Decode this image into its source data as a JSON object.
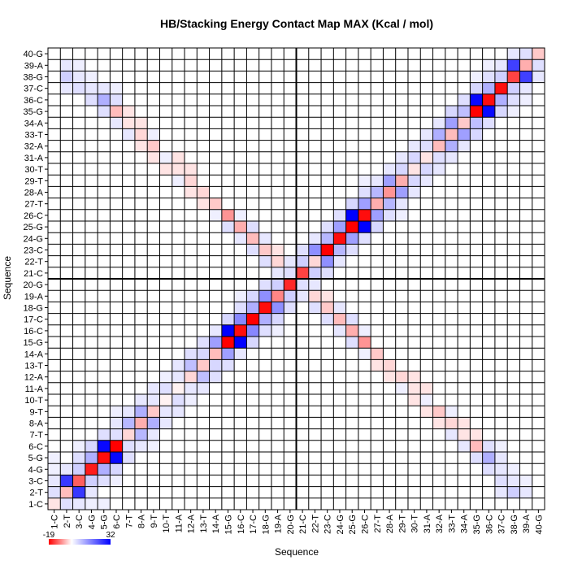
{
  "chart_data": {
    "type": "heatmap",
    "title": "HB/Stacking Energy Contact Map MAX (Kcal / mol)",
    "xlabel": "Sequence",
    "ylabel": "Sequence",
    "labels": [
      "1-C",
      "2-T",
      "3-C",
      "4-G",
      "5-G",
      "6-C",
      "7-T",
      "8-A",
      "9-T",
      "10-T",
      "11-A",
      "12-A",
      "13-T",
      "14-A",
      "15-G",
      "16-C",
      "17-C",
      "18-G",
      "19-A",
      "20-G",
      "21-C",
      "22-T",
      "23-C",
      "24-G",
      "25-G",
      "26-C",
      "27-T",
      "28-A",
      "29-T",
      "30-T",
      "31-A",
      "32-A",
      "33-T",
      "34-A",
      "35-G",
      "36-C",
      "37-C",
      "38-G",
      "39-A",
      "40-G"
    ],
    "x_tick_labels": [
      "1-C",
      "2-T",
      "3-C",
      "4-G",
      "5-G",
      "6-C",
      "7-T",
      "8-A",
      "9-T",
      "10-T",
      "11-A",
      "12-A",
      "13-T",
      "14-A",
      "15-G",
      "16-C",
      "17-C",
      "18-G",
      "19-A",
      "20-G",
      "21-C",
      "22-T",
      "23-C",
      "24-G",
      "25-G",
      "26-C",
      "27-T",
      "28-A",
      "29-T",
      "30-T",
      "31-A",
      "32-A",
      "33-T",
      "34-A",
      "35-G",
      "36-C",
      "37-C",
      "38-G",
      "39-A",
      "40-G"
    ],
    "y_tick_labels": [
      "1-C",
      "2-T",
      "3-C",
      "4-G",
      "5-G",
      "6-C",
      "7-T",
      "8-A",
      "9-T",
      "10-T",
      "11-A",
      "12-A",
      "13-T",
      "14-A",
      "15-G",
      "16-C",
      "17-C",
      "18-G",
      "19-A",
      "20-G",
      "21-C",
      "22-T",
      "23-C",
      "24-G",
      "25-G",
      "26-C",
      "27-T",
      "28-A",
      "29-T",
      "30-T",
      "31-A",
      "32-A",
      "33-T",
      "34-A",
      "35-G",
      "36-C",
      "37-C",
      "38-G",
      "39-A",
      "40-G"
    ],
    "divider_after": 20,
    "colorbar": {
      "min": -19,
      "max": 32,
      "min_label": "-19",
      "max_label": "32",
      "low_color": "#ff0000",
      "mid_color": "#ffffff",
      "high_color": "#0000ff"
    },
    "cells": [
      [
        1,
        1,
        -2
      ],
      [
        1,
        2,
        4
      ],
      [
        2,
        2,
        -5
      ],
      [
        2,
        3,
        25
      ],
      [
        3,
        3,
        -12
      ],
      [
        3,
        4,
        6
      ],
      [
        4,
        4,
        -17
      ],
      [
        4,
        5,
        10
      ],
      [
        5,
        5,
        -18
      ],
      [
        5,
        6,
        31
      ],
      [
        6,
        6,
        -19
      ],
      [
        6,
        7,
        4
      ],
      [
        7,
        7,
        -3
      ],
      [
        7,
        8,
        9
      ],
      [
        8,
        8,
        -6
      ],
      [
        8,
        9,
        10
      ],
      [
        9,
        9,
        -4
      ],
      [
        9,
        10,
        3
      ],
      [
        10,
        10,
        -1
      ],
      [
        10,
        11,
        4
      ],
      [
        11,
        11,
        -1
      ],
      [
        11,
        12,
        3
      ],
      [
        12,
        12,
        -3
      ],
      [
        12,
        13,
        8
      ],
      [
        13,
        13,
        -4
      ],
      [
        13,
        14,
        5
      ],
      [
        14,
        14,
        -5
      ],
      [
        14,
        15,
        12
      ],
      [
        15,
        15,
        -19
      ],
      [
        15,
        16,
        32
      ],
      [
        16,
        16,
        -18
      ],
      [
        16,
        17,
        15
      ],
      [
        17,
        17,
        -19
      ],
      [
        17,
        18,
        10
      ],
      [
        18,
        18,
        -18
      ],
      [
        18,
        19,
        14
      ],
      [
        19,
        19,
        -9
      ],
      [
        19,
        20,
        6
      ],
      [
        20,
        20,
        -16
      ],
      [
        20,
        21,
        4
      ],
      [
        21,
        21,
        -14
      ],
      [
        21,
        22,
        6
      ],
      [
        22,
        22,
        -3
      ],
      [
        22,
        23,
        14
      ],
      [
        23,
        23,
        -19
      ],
      [
        23,
        24,
        9
      ],
      [
        24,
        24,
        -18
      ],
      [
        24,
        25,
        12
      ],
      [
        25,
        25,
        -19
      ],
      [
        25,
        26,
        32
      ],
      [
        26,
        26,
        -18
      ],
      [
        26,
        27,
        12
      ],
      [
        27,
        27,
        -6
      ],
      [
        27,
        28,
        9
      ],
      [
        28,
        28,
        -8
      ],
      [
        28,
        29,
        12
      ],
      [
        29,
        29,
        -6
      ],
      [
        29,
        30,
        5
      ],
      [
        30,
        30,
        -2
      ],
      [
        30,
        31,
        5
      ],
      [
        31,
        31,
        -2
      ],
      [
        31,
        32,
        4
      ],
      [
        32,
        32,
        -5
      ],
      [
        32,
        33,
        10
      ],
      [
        33,
        33,
        -5
      ],
      [
        33,
        34,
        12
      ],
      [
        34,
        34,
        -4
      ],
      [
        34,
        35,
        8
      ],
      [
        35,
        35,
        -19
      ],
      [
        35,
        36,
        31
      ],
      [
        36,
        36,
        -18
      ],
      [
        36,
        37,
        10
      ],
      [
        37,
        37,
        -18
      ],
      [
        37,
        38,
        6
      ],
      [
        38,
        38,
        -14
      ],
      [
        38,
        39,
        24
      ],
      [
        39,
        39,
        -6
      ],
      [
        39,
        40,
        4
      ],
      [
        40,
        40,
        -4
      ],
      [
        2,
        38,
        6
      ],
      [
        3,
        38,
        3
      ],
      [
        2,
        37,
        3
      ],
      [
        3,
        37,
        4
      ],
      [
        3,
        39,
        2
      ],
      [
        4,
        36,
        4
      ],
      [
        4,
        37,
        3
      ],
      [
        5,
        36,
        10
      ],
      [
        5,
        35,
        4
      ],
      [
        5,
        37,
        3
      ],
      [
        6,
        35,
        -5
      ],
      [
        6,
        36,
        4
      ],
      [
        6,
        34,
        3
      ],
      [
        7,
        34,
        -2
      ],
      [
        7,
        33,
        3
      ],
      [
        8,
        33,
        -3
      ],
      [
        8,
        32,
        -2
      ],
      [
        9,
        32,
        -4
      ],
      [
        9,
        31,
        -2
      ],
      [
        10,
        31,
        2
      ],
      [
        10,
        30,
        -2
      ],
      [
        11,
        30,
        -2
      ],
      [
        12,
        29,
        -3
      ],
      [
        13,
        28,
        -3
      ],
      [
        14,
        27,
        -4
      ],
      [
        15,
        26,
        -8
      ],
      [
        16,
        25,
        -6
      ],
      [
        16,
        26,
        2
      ],
      [
        17,
        24,
        -5
      ],
      [
        17,
        25,
        4
      ],
      [
        18,
        23,
        -4
      ],
      [
        18,
        24,
        3
      ],
      [
        19,
        22,
        -3
      ],
      [
        19,
        23,
        -2
      ],
      [
        20,
        21,
        -3
      ],
      [
        15,
        25,
        4
      ],
      [
        16,
        24,
        3
      ],
      [
        17,
        23,
        4
      ],
      [
        18,
        22,
        4
      ],
      [
        14,
        26,
        2
      ],
      [
        13,
        27,
        -2
      ],
      [
        12,
        28,
        -2
      ],
      [
        11,
        29,
        2
      ],
      [
        2,
        39,
        3
      ],
      [
        4,
        38,
        2
      ],
      [
        6,
        37,
        2
      ],
      [
        7,
        35,
        -2
      ],
      [
        8,
        34,
        -2
      ],
      [
        9,
        33,
        2
      ],
      [
        11,
        31,
        -2
      ],
      [
        12,
        30,
        -2
      ],
      [
        1,
        3,
        3
      ],
      [
        1,
        4,
        2
      ],
      [
        2,
        4,
        3
      ],
      [
        3,
        5,
        4
      ],
      [
        4,
        6,
        5
      ],
      [
        5,
        7,
        4
      ],
      [
        6,
        8,
        3
      ],
      [
        7,
        9,
        3
      ],
      [
        8,
        10,
        3
      ],
      [
        9,
        11,
        3
      ],
      [
        10,
        12,
        2
      ],
      [
        11,
        13,
        3
      ],
      [
        12,
        14,
        4
      ],
      [
        13,
        15,
        4
      ],
      [
        14,
        16,
        3
      ],
      [
        15,
        17,
        5
      ],
      [
        16,
        18,
        4
      ],
      [
        17,
        19,
        5
      ],
      [
        18,
        20,
        4
      ],
      [
        19,
        21,
        3
      ],
      [
        20,
        22,
        3
      ],
      [
        21,
        23,
        4
      ],
      [
        22,
        24,
        3
      ],
      [
        23,
        25,
        4
      ],
      [
        24,
        26,
        4
      ],
      [
        25,
        27,
        5
      ],
      [
        26,
        28,
        4
      ],
      [
        27,
        29,
        3
      ],
      [
        28,
        30,
        3
      ],
      [
        29,
        31,
        3
      ],
      [
        30,
        32,
        3
      ],
      [
        31,
        33,
        3
      ],
      [
        32,
        34,
        3
      ],
      [
        33,
        35,
        5
      ],
      [
        34,
        36,
        4
      ],
      [
        35,
        37,
        5
      ],
      [
        36,
        38,
        4
      ],
      [
        37,
        39,
        3
      ],
      [
        38,
        40,
        3
      ],
      [
        3,
        6,
        2
      ],
      [
        6,
        9,
        2
      ],
      [
        16,
        19,
        2
      ],
      [
        26,
        29,
        2
      ],
      [
        36,
        39,
        2
      ],
      [
        1,
        5,
        2
      ],
      [
        35,
        38,
        2
      ]
    ]
  }
}
